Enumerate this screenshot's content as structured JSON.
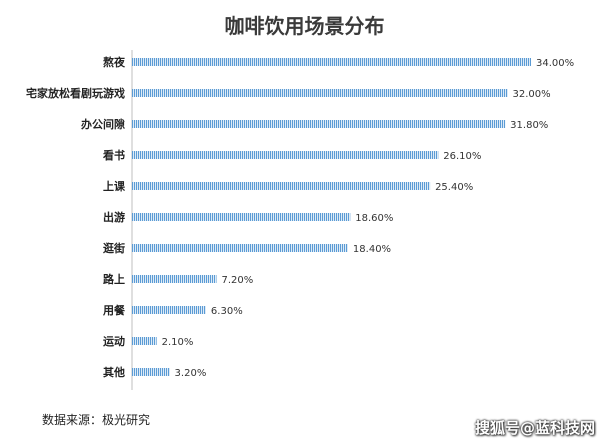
{
  "chart_data": {
    "type": "bar",
    "orientation": "horizontal",
    "title": "咖啡饮用场景分布",
    "categories": [
      "熬夜",
      "宅家放松看剧玩游戏",
      "办公间隙",
      "看书",
      "上课",
      "出游",
      "逛街",
      "路上",
      "用餐",
      "运动",
      "其他"
    ],
    "values": [
      34.0,
      32.0,
      31.8,
      26.1,
      25.4,
      18.6,
      18.4,
      7.2,
      6.3,
      2.1,
      3.2
    ],
    "value_labels": [
      "34.00%",
      "32.00%",
      "31.80%",
      "26.10%",
      "25.40%",
      "18.60%",
      "18.40%",
      "7.20%",
      "6.30%",
      "2.10%",
      "3.20%"
    ],
    "xlim": [
      0,
      34
    ],
    "xlabel": "",
    "ylabel": "",
    "grid": false,
    "bar_color": "#5b9bd5"
  },
  "source_note": "数据来源：极光研究",
  "watermark": "搜狐号@蓝科技网"
}
